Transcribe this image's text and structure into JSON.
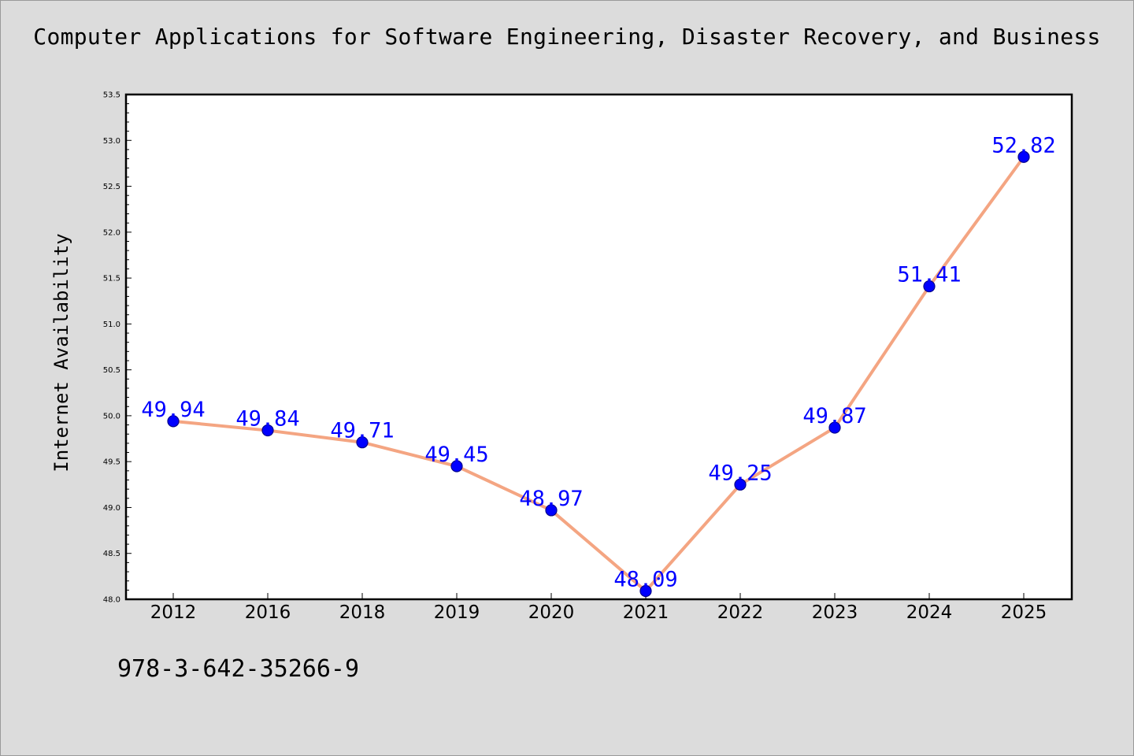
{
  "chart_data": {
    "type": "line",
    "title": "Computer Applications for Software Engineering, Disaster Recovery, and Business",
    "xlabel": "",
    "ylabel": "Internet Availability",
    "categories": [
      "2012",
      "2016",
      "2018",
      "2019",
      "2020",
      "2021",
      "2022",
      "2023",
      "2024",
      "2025"
    ],
    "series": [
      {
        "values": [
          49.94,
          49.84,
          49.71,
          49.45,
          48.97,
          48.09,
          49.25,
          49.87,
          51.41,
          52.82
        ],
        "labels": [
          "49.94",
          "49.84",
          "49.71",
          "49.45",
          "48.97",
          "48.09",
          "49.25",
          "49.87",
          "51.41",
          "52.82"
        ]
      }
    ],
    "ylim": [
      48.0,
      53.5
    ],
    "yticks": [
      "48.0",
      "48.5",
      "49.0",
      "49.5",
      "50.0",
      "50.5",
      "51.0",
      "51.5",
      "52.0",
      "52.5",
      "53.0",
      "53.5"
    ],
    "grid": false,
    "legend": "none",
    "colors": {
      "line": "#f4a582",
      "marker": "#0000ff",
      "marker_edge": "#00008b",
      "data_label": "#0000ff",
      "plot_bg": "#ffffff",
      "figure_bg": "#dcdcdc"
    }
  },
  "footer": {
    "text": "978-3-642-35266-9"
  }
}
